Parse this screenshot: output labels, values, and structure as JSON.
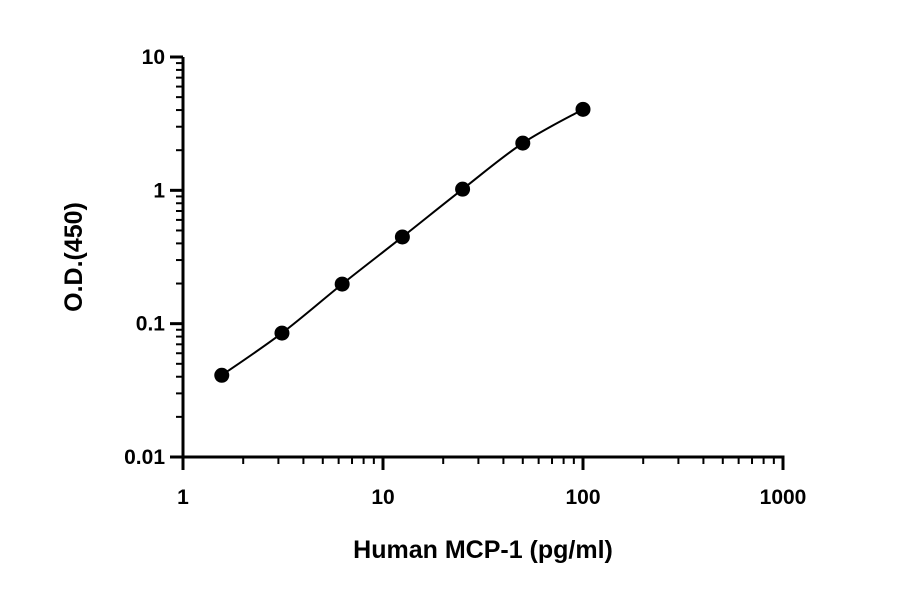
{
  "chart_data": {
    "type": "scatter",
    "title": "",
    "xlabel": "Human MCP-1 (pg/ml)",
    "ylabel": "O.D.(450)",
    "x_scale": "log",
    "y_scale": "log",
    "xlim": [
      1,
      1000
    ],
    "ylim": [
      0.01,
      10
    ],
    "x_ticks": [
      1,
      10,
      100,
      1000
    ],
    "x_tick_labels": [
      "1",
      "10",
      "100",
      "1000"
    ],
    "y_ticks": [
      0.01,
      0.1,
      1,
      10
    ],
    "y_tick_labels": [
      "0.01",
      "0.1",
      "1",
      "10"
    ],
    "grid": false,
    "legend": "none",
    "series": [
      {
        "x": [
          1.5625,
          3.125,
          6.25,
          12.5,
          25,
          50,
          100
        ],
        "y": [
          0.041,
          0.085,
          0.198,
          0.447,
          1.02,
          2.26,
          4.05
        ],
        "marker": "circle",
        "fit_line": true,
        "color": "#000000"
      }
    ]
  }
}
